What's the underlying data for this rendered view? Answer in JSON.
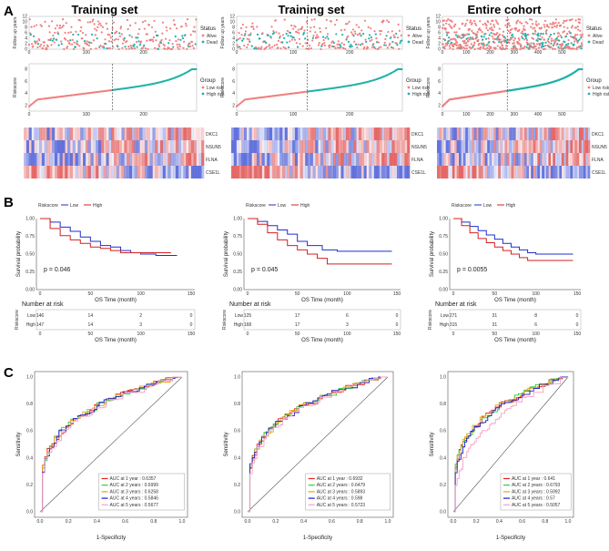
{
  "panels": {
    "a": "A",
    "b": "B",
    "c": "C"
  },
  "colors": {
    "low": "#f08080",
    "high": "#20b2aa",
    "km_low": "#1f2fcf",
    "km_high": "#d42020",
    "heat_low": "#4a5cd6",
    "heat_high": "#e05050"
  },
  "labels": {
    "follow_up": "Follow up years",
    "riskscore": "Riskscore",
    "status": "Status",
    "alive": "Alive",
    "dead": "Dead",
    "group": "Group",
    "low_risk": "Low risk",
    "high_risk": "High risk",
    "survival": "Survival probability",
    "os_time": "OS Time (month)",
    "number_at_risk": "Number at risk",
    "km_legend_title": "Riskscore",
    "km_low": "Low",
    "km_high": "High",
    "risk_low": "Low",
    "risk_high": "High",
    "sensitivity": "Sensitivity",
    "one_minus_spec": "1-Specificity"
  },
  "genes": [
    "DKC1",
    "NSUN5",
    "FLNA",
    "CSE1L"
  ],
  "chart_data": [
    {
      "type": "scatter",
      "title": "Training set",
      "n": 293,
      "cutoff": 146,
      "followup_ylim": [
        0,
        12
      ],
      "followup_yticks": [
        "0",
        "2",
        "4",
        "6",
        "8",
        "10",
        "12"
      ],
      "xticks": [
        0,
        100,
        200
      ],
      "risk_yticks": [
        "2",
        "4",
        "6",
        "8"
      ],
      "survival": {
        "xticks": [
          0,
          50,
          100,
          150
        ],
        "yticks": [
          "0.00",
          "0.25",
          "0.50",
          "0.75",
          "1.00"
        ],
        "p_value": "p = 0.046",
        "low_curve": [
          [
            0,
            1
          ],
          [
            10,
            0.95
          ],
          [
            20,
            0.88
          ],
          [
            30,
            0.82
          ],
          [
            40,
            0.74
          ],
          [
            50,
            0.68
          ],
          [
            60,
            0.62
          ],
          [
            70,
            0.6
          ],
          [
            80,
            0.55
          ],
          [
            90,
            0.52
          ],
          [
            100,
            0.5
          ],
          [
            115,
            0.48
          ],
          [
            136,
            0.48
          ]
        ],
        "high_curve": [
          [
            0,
            1
          ],
          [
            10,
            0.86
          ],
          [
            20,
            0.76
          ],
          [
            30,
            0.7
          ],
          [
            40,
            0.65
          ],
          [
            50,
            0.6
          ],
          [
            60,
            0.58
          ],
          [
            70,
            0.55
          ],
          [
            80,
            0.52
          ],
          [
            100,
            0.52
          ],
          [
            130,
            0.52
          ]
        ],
        "risk_low": [
          "146",
          "14",
          "2",
          "0"
        ],
        "risk_high": [
          "147",
          "14",
          "3",
          "0"
        ]
      },
      "roc": {
        "legend": [
          "AUC at 1 year : 0.6357",
          "AUC at 2 years : 0.6999",
          "AUC at 3 years : 0.6258",
          "AUC at 4 years : 0.5846",
          "AUC at 5 years : 0.5677"
        ],
        "auc": [
          0.6357,
          0.6999,
          0.6258,
          0.5846,
          0.5677
        ]
      }
    },
    {
      "type": "scatter",
      "title": "Training set",
      "n": 293,
      "cutoff": 125,
      "followup_ylim": [
        0,
        12
      ],
      "followup_yticks": [
        "0",
        "2",
        "4",
        "6",
        "8",
        "10",
        "12"
      ],
      "xticks": [
        0,
        100,
        200
      ],
      "risk_yticks": [
        "2",
        "4",
        "6",
        "8"
      ],
      "survival": {
        "xticks": [
          0,
          50,
          100,
          150
        ],
        "yticks": [
          "0.00",
          "0.25",
          "0.50",
          "0.75",
          "1.00"
        ],
        "p_value": "p = 0.045",
        "low_curve": [
          [
            0,
            1
          ],
          [
            10,
            0.96
          ],
          [
            20,
            0.9
          ],
          [
            30,
            0.84
          ],
          [
            40,
            0.78
          ],
          [
            50,
            0.68
          ],
          [
            60,
            0.62
          ],
          [
            75,
            0.56
          ],
          [
            90,
            0.54
          ],
          [
            145,
            0.54
          ]
        ],
        "high_curve": [
          [
            0,
            1
          ],
          [
            10,
            0.92
          ],
          [
            20,
            0.8
          ],
          [
            30,
            0.7
          ],
          [
            40,
            0.62
          ],
          [
            50,
            0.56
          ],
          [
            60,
            0.5
          ],
          [
            70,
            0.44
          ],
          [
            80,
            0.36
          ],
          [
            100,
            0.36
          ],
          [
            145,
            0.36
          ]
        ],
        "risk_low": [
          "125",
          "17",
          "6",
          "0"
        ],
        "risk_high": [
          "168",
          "17",
          "3",
          "0"
        ]
      },
      "roc": {
        "legend": [
          "AUC at 1 year : 0.6932",
          "AUC at 2 years : 0.6479",
          "AUC at 3 years : 0.5893",
          "AUC at 4 years : 0.598",
          "AUC at 5 years : 0.5723"
        ],
        "auc": [
          0.6932,
          0.6479,
          0.5893,
          0.598,
          0.5723
        ]
      }
    },
    {
      "type": "scatter",
      "title": "Entire cohort",
      "n": 586,
      "cutoff": 271,
      "followup_ylim": [
        0,
        12
      ],
      "followup_yticks": [
        "0",
        "2",
        "4",
        "6",
        "8",
        "10",
        "12"
      ],
      "xticks": [
        0,
        100,
        200,
        300,
        400,
        500
      ],
      "risk_yticks": [
        "2",
        "4",
        "6",
        "8"
      ],
      "survival": {
        "xticks": [
          0,
          50,
          100,
          150
        ],
        "yticks": [
          "0.00",
          "0.25",
          "0.50",
          "0.75",
          "1.00"
        ],
        "p_value": "p = 0.0055",
        "low_curve": [
          [
            0,
            1
          ],
          [
            10,
            0.95
          ],
          [
            20,
            0.89
          ],
          [
            30,
            0.83
          ],
          [
            40,
            0.77
          ],
          [
            50,
            0.71
          ],
          [
            60,
            0.65
          ],
          [
            70,
            0.6
          ],
          [
            80,
            0.56
          ],
          [
            90,
            0.52
          ],
          [
            100,
            0.5
          ],
          [
            145,
            0.5
          ]
        ],
        "high_curve": [
          [
            0,
            1
          ],
          [
            10,
            0.9
          ],
          [
            20,
            0.8
          ],
          [
            30,
            0.72
          ],
          [
            40,
            0.66
          ],
          [
            50,
            0.6
          ],
          [
            60,
            0.55
          ],
          [
            70,
            0.5
          ],
          [
            80,
            0.45
          ],
          [
            90,
            0.41
          ],
          [
            100,
            0.41
          ],
          [
            145,
            0.41
          ]
        ],
        "risk_low": [
          "271",
          "31",
          "8",
          "0"
        ],
        "risk_high": [
          "315",
          "31",
          "6",
          "0"
        ]
      },
      "roc": {
        "legend": [
          "AUC at 1 year : 0.641",
          "AUC at 2 years : 0.6793",
          "AUC at 3 years : 0.5992",
          "AUC at 4 years : 0.57",
          "AUC at 5 years : 0.5057"
        ],
        "auc": [
          0.641,
          0.6793,
          0.5992,
          0.57,
          0.5057
        ]
      }
    }
  ],
  "roc_colors": [
    "#e8201e",
    "#33cc33",
    "#e6a117",
    "#1c1ccc",
    "#f5a0c0"
  ],
  "roc_ticks": [
    "0.0",
    "0.2",
    "0.4",
    "0.6",
    "0.8",
    "1.0"
  ]
}
